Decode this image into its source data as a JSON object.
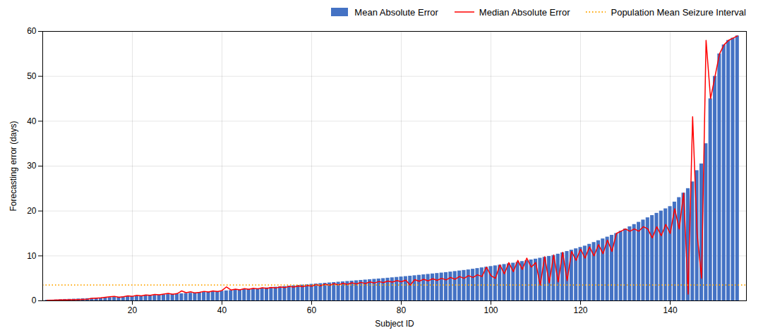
{
  "chart_data": {
    "type": "bar",
    "xlabel": "Subject ID",
    "ylabel": "Forecasting error (days)",
    "x": [
      1,
      2,
      3,
      4,
      5,
      6,
      7,
      8,
      9,
      10,
      11,
      12,
      13,
      14,
      15,
      16,
      17,
      18,
      19,
      20,
      21,
      22,
      23,
      24,
      25,
      26,
      27,
      28,
      29,
      30,
      31,
      32,
      33,
      34,
      35,
      36,
      37,
      38,
      39,
      40,
      41,
      42,
      43,
      44,
      45,
      46,
      47,
      48,
      49,
      50,
      51,
      52,
      53,
      54,
      55,
      56,
      57,
      58,
      59,
      60,
      61,
      62,
      63,
      64,
      65,
      66,
      67,
      68,
      69,
      70,
      71,
      72,
      73,
      74,
      75,
      76,
      77,
      78,
      79,
      80,
      81,
      82,
      83,
      84,
      85,
      86,
      87,
      88,
      89,
      90,
      91,
      92,
      93,
      94,
      95,
      96,
      97,
      98,
      99,
      100,
      101,
      102,
      103,
      104,
      105,
      106,
      107,
      108,
      109,
      110,
      111,
      112,
      113,
      114,
      115,
      116,
      117,
      118,
      119,
      120,
      121,
      122,
      123,
      124,
      125,
      126,
      127,
      128,
      129,
      130,
      131,
      132,
      133,
      134,
      135,
      136,
      137,
      138,
      139,
      140,
      141,
      142,
      143,
      144,
      145,
      146,
      147,
      148,
      149,
      150,
      151,
      152,
      153,
      154,
      155
    ],
    "series": [
      {
        "name": "Mean Absolute Error",
        "type": "bar",
        "color": "#4472C4",
        "values": [
          0.15,
          0.18,
          0.22,
          0.27,
          0.32,
          0.35,
          0.38,
          0.42,
          0.46,
          0.5,
          0.54,
          0.58,
          0.63,
          0.68,
          0.73,
          0.78,
          0.83,
          0.88,
          0.93,
          0.98,
          1.03,
          1.08,
          1.13,
          1.18,
          1.23,
          1.28,
          1.34,
          1.4,
          1.46,
          1.52,
          1.58,
          1.64,
          1.7,
          1.76,
          1.82,
          1.88,
          1.95,
          2.02,
          2.09,
          2.16,
          2.23,
          2.3,
          2.37,
          2.44,
          2.51,
          2.58,
          2.65,
          2.72,
          2.8,
          2.88,
          2.96,
          3.04,
          3.12,
          3.2,
          3.28,
          3.36,
          3.44,
          3.52,
          3.6,
          3.68,
          3.76,
          3.84,
          3.92,
          4.0,
          4.08,
          4.16,
          4.24,
          4.32,
          4.4,
          4.48,
          4.56,
          4.64,
          4.72,
          4.8,
          4.88,
          4.96,
          5.05,
          5.14,
          5.23,
          5.32,
          5.41,
          5.5,
          5.6,
          5.7,
          5.8,
          5.9,
          6.0,
          6.1,
          6.2,
          6.3,
          6.42,
          6.54,
          6.66,
          6.78,
          6.9,
          7.05,
          7.2,
          7.35,
          7.5,
          7.65,
          7.8,
          7.95,
          8.1,
          8.25,
          8.4,
          8.58,
          8.76,
          8.94,
          9.12,
          9.3,
          9.5,
          9.7,
          9.9,
          10.1,
          10.4,
          10.7,
          11.0,
          11.3,
          11.6,
          11.9,
          12.2,
          12.6,
          13.0,
          13.4,
          13.8,
          14.2,
          14.6,
          15.0,
          15.5,
          16.0,
          16.5,
          17.0,
          17.5,
          18.0,
          18.5,
          19.0,
          19.5,
          20.0,
          20.5,
          21.0,
          22.0,
          23.0,
          24.0,
          25.0,
          26.5,
          29.0,
          30.5,
          35.0,
          45.0,
          50.0,
          55.0,
          57.0,
          58.0,
          58.5,
          59.0
        ]
      },
      {
        "name": "Median Absolute Error",
        "type": "line",
        "color": "#FF0000",
        "line_style": "solid",
        "values": [
          0.1,
          0.12,
          0.15,
          0.18,
          0.2,
          0.22,
          0.25,
          0.28,
          0.32,
          0.36,
          0.55,
          0.6,
          0.65,
          0.8,
          0.9,
          1.0,
          0.8,
          0.9,
          1.1,
          1.0,
          1.2,
          1.1,
          1.3,
          1.2,
          1.4,
          1.35,
          1.5,
          1.65,
          1.45,
          1.6,
          2.2,
          1.8,
          2.0,
          1.75,
          1.9,
          2.1,
          1.95,
          2.2,
          2.05,
          2.3,
          3.1,
          2.4,
          2.6,
          2.45,
          2.7,
          2.55,
          2.8,
          2.65,
          2.9,
          2.75,
          3.0,
          2.85,
          3.1,
          2.95,
          3.2,
          3.05,
          3.3,
          3.15,
          3.4,
          3.25,
          3.6,
          3.35,
          3.7,
          3.45,
          3.8,
          3.55,
          3.9,
          3.65,
          4.0,
          3.75,
          4.1,
          3.85,
          4.2,
          3.95,
          4.3,
          4.05,
          4.4,
          4.15,
          4.5,
          4.25,
          4.6,
          3.5,
          4.7,
          4.35,
          4.8,
          4.45,
          4.9,
          4.55,
          5.0,
          4.65,
          5.2,
          4.8,
          5.4,
          5.0,
          5.6,
          5.2,
          5.8,
          5.4,
          7.5,
          5.6,
          5.0,
          8.0,
          6.0,
          8.5,
          6.5,
          9.0,
          7.0,
          9.5,
          7.5,
          8.5,
          3.5,
          9.8,
          4.0,
          10.2,
          4.2,
          10.8,
          4.5,
          11.0,
          9.0,
          11.5,
          9.5,
          12.0,
          10.0,
          12.5,
          10.5,
          13.5,
          11.0,
          15.0,
          15.5,
          16.0,
          15.5,
          16.0,
          15.5,
          16.5,
          16.0,
          14.0,
          16.5,
          14.5,
          17.0,
          15.0,
          20.5,
          16.0,
          24.0,
          1.5,
          41.0,
          15.0,
          5.0,
          58.0,
          45.0,
          50.0,
          55.0,
          57.0,
          58.0,
          58.5,
          59.0
        ]
      },
      {
        "name": "Population Mean Seizure Interval",
        "type": "hline",
        "color": "#FFA500",
        "line_style": "dotted",
        "value": 3.5
      }
    ],
    "xlim": [
      0,
      157
    ],
    "xticks": [
      20,
      40,
      60,
      80,
      100,
      120,
      140
    ],
    "ylim": [
      0,
      60
    ],
    "yticks": [
      0,
      10,
      20,
      30,
      40,
      50,
      60
    ],
    "grid": true,
    "legend": "top"
  }
}
